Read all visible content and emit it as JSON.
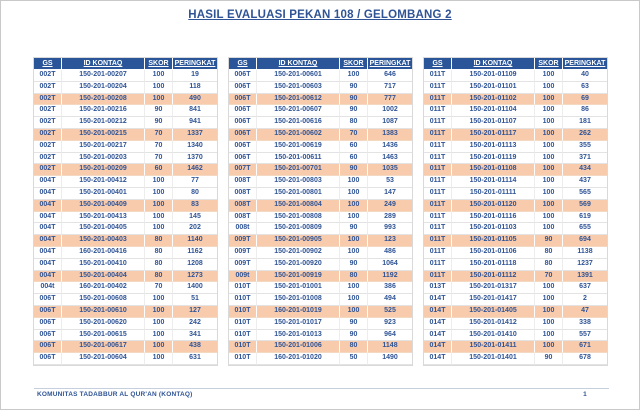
{
  "page": {
    "title": "HASIL EVALUASI PEKAN 108 / GELOMBANG 2",
    "footer_org": "KOMUNITAS TADABBUR AL QUR'AN (KONTAQ)",
    "page_number": "1"
  },
  "colors": {
    "header_bg": "#2A5699",
    "text_blue": "#2F5496",
    "highlight_row": "#F8CBAD"
  },
  "columns": [
    "GS",
    "ID KONTAQ",
    "SKOR",
    "PERINGKAT"
  ],
  "highlight_rule": "every third data row is shaded",
  "tables": [
    {
      "rows": [
        [
          "002T",
          "150-201-00207",
          "100",
          "19"
        ],
        [
          "002T",
          "150-201-00204",
          "100",
          "118"
        ],
        [
          "002T",
          "150-201-00208",
          "100",
          "490"
        ],
        [
          "002T",
          "150-201-00216",
          "90",
          "841"
        ],
        [
          "002T",
          "150-201-00212",
          "90",
          "941"
        ],
        [
          "002T",
          "150-201-00215",
          "70",
          "1337"
        ],
        [
          "002T",
          "150-201-00217",
          "70",
          "1340"
        ],
        [
          "002T",
          "150-201-00203",
          "70",
          "1370"
        ],
        [
          "002T",
          "150-201-00209",
          "60",
          "1462"
        ],
        [
          "004T",
          "150-201-00412",
          "100",
          "77"
        ],
        [
          "004T",
          "150-201-00401",
          "100",
          "80"
        ],
        [
          "004T",
          "150-201-00409",
          "100",
          "83"
        ],
        [
          "004T",
          "150-201-00413",
          "100",
          "145"
        ],
        [
          "004T",
          "150-201-00405",
          "100",
          "202"
        ],
        [
          "004T",
          "150-201-00403",
          "80",
          "1140"
        ],
        [
          "004T",
          "160-201-00416",
          "80",
          "1162"
        ],
        [
          "004T",
          "150-201-00410",
          "80",
          "1208"
        ],
        [
          "004T",
          "150-201-00404",
          "80",
          "1273"
        ],
        [
          "004t",
          "160-201-00402",
          "70",
          "1400"
        ],
        [
          "006T",
          "150-201-00608",
          "100",
          "51"
        ],
        [
          "006T",
          "150-201-00610",
          "100",
          "127"
        ],
        [
          "006T",
          "150-201-00620",
          "100",
          "242"
        ],
        [
          "006T",
          "150-201-00615",
          "100",
          "341"
        ],
        [
          "006T",
          "150-201-00617",
          "100",
          "438"
        ],
        [
          "006T",
          "150-201-00604",
          "100",
          "631"
        ]
      ]
    },
    {
      "rows": [
        [
          "006T",
          "150-201-00601",
          "100",
          "646"
        ],
        [
          "006T",
          "150-201-00603",
          "90",
          "717"
        ],
        [
          "006T",
          "150-201-00612",
          "90",
          "777"
        ],
        [
          "006T",
          "150-201-00607",
          "90",
          "1002"
        ],
        [
          "006T",
          "150-201-00616",
          "80",
          "1087"
        ],
        [
          "006T",
          "150-201-00602",
          "70",
          "1383"
        ],
        [
          "006T",
          "150-201-00619",
          "60",
          "1436"
        ],
        [
          "006T",
          "150-201-00611",
          "60",
          "1463"
        ],
        [
          "007T",
          "150-201-00701",
          "90",
          "1035"
        ],
        [
          "008T",
          "150-201-00803",
          "100",
          "53"
        ],
        [
          "008T",
          "150-201-00801",
          "100",
          "147"
        ],
        [
          "008T",
          "150-201-00804",
          "100",
          "249"
        ],
        [
          "008T",
          "150-201-00808",
          "100",
          "289"
        ],
        [
          "008t",
          "150-201-00809",
          "90",
          "993"
        ],
        [
          "009T",
          "150-201-00905",
          "100",
          "123"
        ],
        [
          "009T",
          "150-201-00902",
          "100",
          "486"
        ],
        [
          "009T",
          "150-201-00920",
          "90",
          "1064"
        ],
        [
          "009t",
          "150-201-00919",
          "80",
          "1192"
        ],
        [
          "010T",
          "150-201-01001",
          "100",
          "386"
        ],
        [
          "010T",
          "150-201-01008",
          "100",
          "494"
        ],
        [
          "010T",
          "160-201-01019",
          "100",
          "525"
        ],
        [
          "010T",
          "150-201-01017",
          "90",
          "923"
        ],
        [
          "010T",
          "150-201-01013",
          "90",
          "964"
        ],
        [
          "010T",
          "150-201-01006",
          "80",
          "1148"
        ],
        [
          "010T",
          "160-201-01020",
          "50",
          "1490"
        ]
      ]
    },
    {
      "rows": [
        [
          "011T",
          "150-201-01109",
          "100",
          "40"
        ],
        [
          "011T",
          "150-201-01101",
          "100",
          "63"
        ],
        [
          "011T",
          "150-201-01102",
          "100",
          "69"
        ],
        [
          "011T",
          "150-201-01104",
          "100",
          "86"
        ],
        [
          "011T",
          "150-201-01107",
          "100",
          "181"
        ],
        [
          "011T",
          "150-201-01117",
          "100",
          "262"
        ],
        [
          "011T",
          "150-201-01113",
          "100",
          "355"
        ],
        [
          "011T",
          "150-201-01119",
          "100",
          "371"
        ],
        [
          "011T",
          "150-201-01108",
          "100",
          "434"
        ],
        [
          "011T",
          "150-201-01114",
          "100",
          "437"
        ],
        [
          "011T",
          "150-201-01111",
          "100",
          "565"
        ],
        [
          "011T",
          "150-201-01120",
          "100",
          "569"
        ],
        [
          "011T",
          "150-201-01116",
          "100",
          "619"
        ],
        [
          "011T",
          "150-201-01103",
          "100",
          "655"
        ],
        [
          "011T",
          "150-201-01105",
          "90",
          "694"
        ],
        [
          "011T",
          "150-201-01106",
          "80",
          "1138"
        ],
        [
          "011T",
          "150-201-01118",
          "80",
          "1237"
        ],
        [
          "011T",
          "150-201-01112",
          "70",
          "1391"
        ],
        [
          "013T",
          "150-201-01317",
          "100",
          "637"
        ],
        [
          "014T",
          "150-201-01417",
          "100",
          "2"
        ],
        [
          "014T",
          "150-201-01405",
          "100",
          "47"
        ],
        [
          "014T",
          "150-201-01412",
          "100",
          "338"
        ],
        [
          "014T",
          "150-201-01410",
          "100",
          "557"
        ],
        [
          "014T",
          "150-201-01411",
          "100",
          "671"
        ],
        [
          "014T",
          "150-201-01401",
          "90",
          "678"
        ]
      ]
    }
  ]
}
